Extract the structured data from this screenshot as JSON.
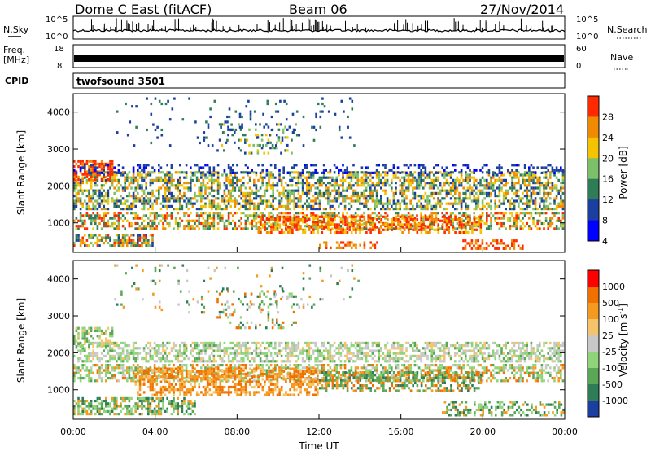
{
  "header": {
    "station": "Dome C East (fitACF)",
    "beam": "Beam 06",
    "date": "27/Nov/2014"
  },
  "top_panels": {
    "nsky_label": "N.Sky",
    "nsky_ticks": [
      "10^5",
      "10^0"
    ],
    "nsearch_label": "N.Search",
    "nsearch_ticks": [
      "10^5",
      "10^0"
    ],
    "freq_label": "Freq.",
    "freq_unit": "[MHz]",
    "freq_ticks": [
      "18",
      "8"
    ],
    "nave_label": "Nave",
    "nave_ticks": [
      "60",
      "0"
    ],
    "cpid_label": "CPID",
    "cpid_value": "twofsound 3501"
  },
  "chart_data": [
    {
      "type": "heatmap",
      "name": "power",
      "ylabel": "Slant Range [km]",
      "ylim": [
        200,
        4500
      ],
      "yticks": [
        "4000",
        "3000",
        "2000",
        "1000"
      ],
      "xlim": [
        0,
        24
      ],
      "colorbar": {
        "label": "Power [dB]",
        "ticks": [
          "28",
          "24",
          "20",
          "16",
          "12",
          "8",
          "4"
        ],
        "colors": [
          "#0000ff",
          "#1a3fa0",
          "#2e7d57",
          "#7cc06a",
          "#f5c400",
          "#f08a00",
          "#ff2a00"
        ]
      }
    },
    {
      "type": "heatmap",
      "name": "velocity",
      "ylabel": "Slant Range [km]",
      "ylim": [
        200,
        4500
      ],
      "yticks": [
        "4000",
        "3000",
        "2000",
        "1000"
      ],
      "xlim": [
        0,
        24
      ],
      "xlabel": "Time UT",
      "xticks": [
        "00:00",
        "04:00",
        "08:00",
        "12:00",
        "16:00",
        "20:00",
        "00:00"
      ],
      "colorbar": {
        "label": "Velocity [m s",
        "label_sup": "-1",
        "label_end": "]",
        "ticks": [
          "1000",
          "500",
          "100",
          "25",
          "-25",
          "-100",
          "-500",
          "-1000"
        ],
        "colors": [
          "#1a3fa0",
          "#2e7d57",
          "#5aa855",
          "#8fd37a",
          "#c8c8c8",
          "#f5c46a",
          "#f59a20",
          "#f07000",
          "#ff0000"
        ]
      }
    }
  ]
}
